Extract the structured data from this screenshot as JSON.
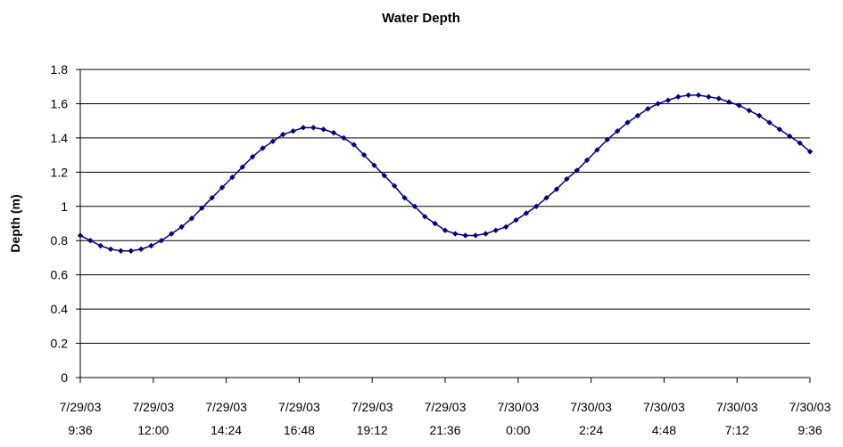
{
  "chart_data": {
    "type": "line",
    "title": "Water Depth",
    "y_label": "Depth (m)",
    "x": [
      "7/29/03 9:36",
      "7/29/03 9:56",
      "7/29/03 10:16",
      "7/29/03 10:36",
      "7/29/03 10:56",
      "7/29/03 11:16",
      "7/29/03 11:36",
      "7/29/03 11:56",
      "7/29/03 12:16",
      "7/29/03 12:36",
      "7/29/03 12:56",
      "7/29/03 13:16",
      "7/29/03 13:36",
      "7/29/03 13:56",
      "7/29/03 14:16",
      "7/29/03 14:36",
      "7/29/03 14:56",
      "7/29/03 15:16",
      "7/29/03 15:36",
      "7/29/03 15:56",
      "7/29/03 16:16",
      "7/29/03 16:36",
      "7/29/03 16:56",
      "7/29/03 17:16",
      "7/29/03 17:36",
      "7/29/03 17:56",
      "7/29/03 18:16",
      "7/29/03 18:36",
      "7/29/03 18:56",
      "7/29/03 19:16",
      "7/29/03 19:36",
      "7/29/03 19:56",
      "7/29/03 20:16",
      "7/29/03 20:36",
      "7/29/03 20:56",
      "7/29/03 21:16",
      "7/29/03 21:36",
      "7/29/03 21:56",
      "7/29/03 22:16",
      "7/29/03 22:36",
      "7/29/03 22:56",
      "7/29/03 23:16",
      "7/29/03 23:36",
      "7/29/03 23:56",
      "7/30/03 0:16",
      "7/30/03 0:36",
      "7/30/03 0:56",
      "7/30/03 1:16",
      "7/30/03 1:36",
      "7/30/03 1:56",
      "7/30/03 2:16",
      "7/30/03 2:36",
      "7/30/03 2:56",
      "7/30/03 3:16",
      "7/30/03 3:36",
      "7/30/03 3:56",
      "7/30/03 4:16",
      "7/30/03 4:36",
      "7/30/03 4:56",
      "7/30/03 5:16",
      "7/30/03 5:36",
      "7/30/03 5:56",
      "7/30/03 6:16",
      "7/30/03 6:36",
      "7/30/03 6:56",
      "7/30/03 7:16",
      "7/30/03 7:36",
      "7/30/03 7:56",
      "7/30/03 8:16",
      "7/30/03 8:36",
      "7/30/03 8:56",
      "7/30/03 9:16",
      "7/30/03 9:36"
    ],
    "series": [
      {
        "color": "#000080",
        "values": [
          0.83,
          0.8,
          0.77,
          0.75,
          0.74,
          0.74,
          0.75,
          0.77,
          0.8,
          0.84,
          0.88,
          0.93,
          0.99,
          1.05,
          1.11,
          1.17,
          1.23,
          1.29,
          1.34,
          1.38,
          1.42,
          1.44,
          1.46,
          1.46,
          1.45,
          1.43,
          1.4,
          1.36,
          1.3,
          1.24,
          1.18,
          1.12,
          1.05,
          1.0,
          0.94,
          0.9,
          0.86,
          0.84,
          0.83,
          0.83,
          0.84,
          0.86,
          0.88,
          0.92,
          0.96,
          1.0,
          1.05,
          1.1,
          1.16,
          1.21,
          1.27,
          1.33,
          1.39,
          1.44,
          1.49,
          1.53,
          1.57,
          1.6,
          1.62,
          1.64,
          1.65,
          1.65,
          1.64,
          1.63,
          1.61,
          1.59,
          1.56,
          1.53,
          1.49,
          1.45,
          1.41,
          1.37,
          1.32
        ]
      }
    ],
    "xlim": [
      "7/29/03 9:36",
      "7/30/03 9:36"
    ],
    "xticks": [
      "7/29/03 9:36",
      "7/29/03 12:00",
      "7/29/03 14:24",
      "7/29/03 16:48",
      "7/29/03 19:12",
      "7/29/03 21:36",
      "7/30/03 0:00",
      "7/30/03 2:24",
      "7/30/03 4:48",
      "7/30/03 7:12",
      "7/30/03 9:36"
    ],
    "ylim": [
      0,
      1.8
    ],
    "yticks": [
      0,
      0.2,
      0.4,
      0.6,
      0.8,
      1,
      1.2,
      1.4,
      1.6,
      1.8
    ],
    "grid": true
  }
}
